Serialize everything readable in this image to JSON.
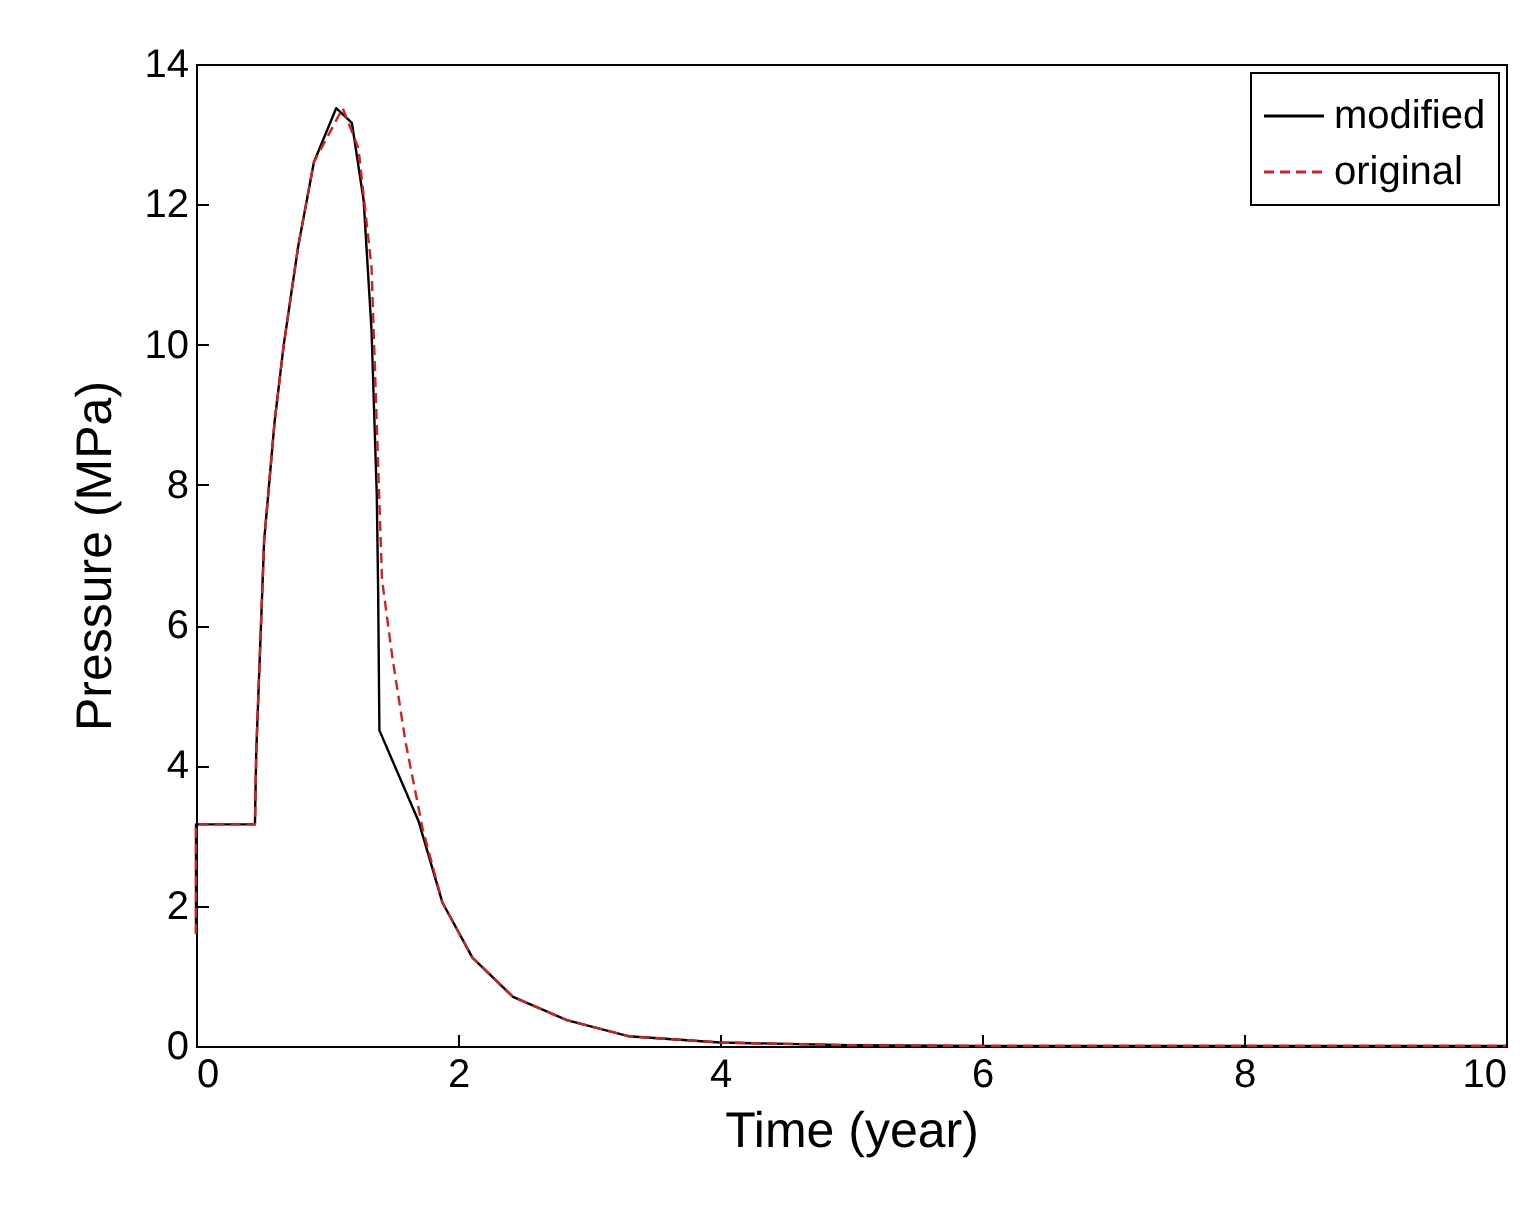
{
  "chart_data": {
    "type": "line",
    "xlabel": "Time (year)",
    "ylabel": "Pressure (MPa)",
    "xlim": [
      0,
      10
    ],
    "ylim": [
      0,
      14
    ],
    "xticks": [
      0,
      2,
      4,
      6,
      8,
      10
    ],
    "yticks": [
      0,
      2,
      4,
      6,
      8,
      10,
      12,
      14
    ],
    "grid": false,
    "legend": "top right",
    "series": [
      {
        "name": "modified",
        "color": "#000000",
        "line_style": "solid",
        "x": [
          0,
          0,
          0.45,
          0.46,
          0.52,
          0.6,
          0.67,
          0.78,
          0.9,
          1.07,
          1.19,
          1.28,
          1.34,
          1.38,
          1.39,
          1.4,
          1.7,
          1.88,
          2.11,
          2.42,
          2.83,
          3.3,
          4,
          5,
          6,
          10
        ],
        "values": [
          1.6,
          3.16,
          3.16,
          4.2,
          7.2,
          8.9,
          10,
          11.4,
          12.6,
          13.37,
          13.16,
          12.05,
          10.2,
          7.86,
          6.56,
          4.5,
          3.2,
          2.05,
          1.26,
          0.7,
          0.37,
          0.14,
          0.05,
          0.01,
          0,
          0
        ]
      },
      {
        "name": "original",
        "color": "#d62020",
        "line_style": "dashed",
        "x": [
          0,
          0,
          0.45,
          0.46,
          0.52,
          0.6,
          0.67,
          0.78,
          0.9,
          1.12,
          1.24,
          1.34,
          1.39,
          1.42,
          1.5,
          1.6,
          1.73,
          1.88,
          2.11,
          2.42,
          2.83,
          3.3,
          4,
          5,
          6,
          10
        ],
        "values": [
          1.6,
          3.16,
          3.16,
          4.2,
          7.2,
          8.9,
          10,
          11.4,
          12.6,
          13.37,
          12.8,
          11.1,
          8.3,
          6.65,
          5.53,
          4.33,
          3.1,
          2.05,
          1.26,
          0.7,
          0.37,
          0.14,
          0.05,
          0.01,
          0,
          0
        ]
      }
    ]
  }
}
